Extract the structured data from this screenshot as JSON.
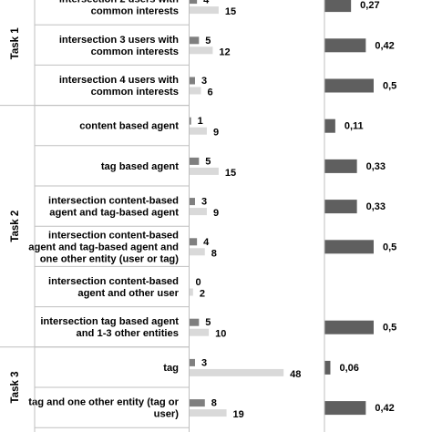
{
  "chart_data": {
    "type": "bar",
    "orientation": "horizontal",
    "groups": [
      {
        "label": "Task 1",
        "categories": [
          {
            "label": "intersection 2 users with\ncommon interests",
            "a": 4,
            "b": 15,
            "ratio": 0.27,
            "ratio_label": "0,27"
          },
          {
            "label": "intersection 3 users with\ncommon interests",
            "a": 5,
            "b": 12,
            "ratio": 0.42,
            "ratio_label": "0,42"
          },
          {
            "label": "intersection 4 users with\ncommon interests",
            "a": 3,
            "b": 6,
            "ratio": 0.5,
            "ratio_label": "0,5"
          }
        ]
      },
      {
        "label": "Task 2",
        "categories": [
          {
            "label": "content based agent",
            "a": 1,
            "b": 9,
            "ratio": 0.11,
            "ratio_label": "0,11"
          },
          {
            "label": "tag based agent",
            "a": 5,
            "b": 15,
            "ratio": 0.33,
            "ratio_label": "0,33"
          },
          {
            "label": "intersection content-based\nagent and tag-based agent",
            "a": 3,
            "b": 9,
            "ratio": 0.33,
            "ratio_label": "0,33"
          },
          {
            "label": "intersection content-based\nagent and tag-based agent and\none other entity (user or tag)",
            "a": 4,
            "b": 8,
            "ratio": 0.5,
            "ratio_label": "0,5"
          },
          {
            "label": "intersection content-based\nagent and other user",
            "a": 0,
            "b": 2,
            "ratio": null,
            "ratio_label": ""
          },
          {
            "label": "intersection tag based agent\nand 1-3 other entities",
            "a": 5,
            "b": 10,
            "ratio": 0.5,
            "ratio_label": "0,5"
          }
        ]
      },
      {
        "label": "Task 3",
        "categories": [
          {
            "label": "tag",
            "a": 3,
            "b": 48,
            "ratio": 0.06,
            "ratio_label": "0,06"
          },
          {
            "label": "tag and one other entity (tag or\nuser)",
            "a": 8,
            "b": 19,
            "ratio": 0.42,
            "ratio_label": "0,42"
          }
        ]
      }
    ],
    "colors": {
      "bar_a": "#7f7f7f",
      "bar_b": "#d9d9d9",
      "ratio": "#5f5f5f",
      "axis": "#bfbfbf",
      "text": "#000000"
    },
    "title": "",
    "xlabel": "",
    "ylabel": "",
    "legend": "none",
    "grid": false
  }
}
